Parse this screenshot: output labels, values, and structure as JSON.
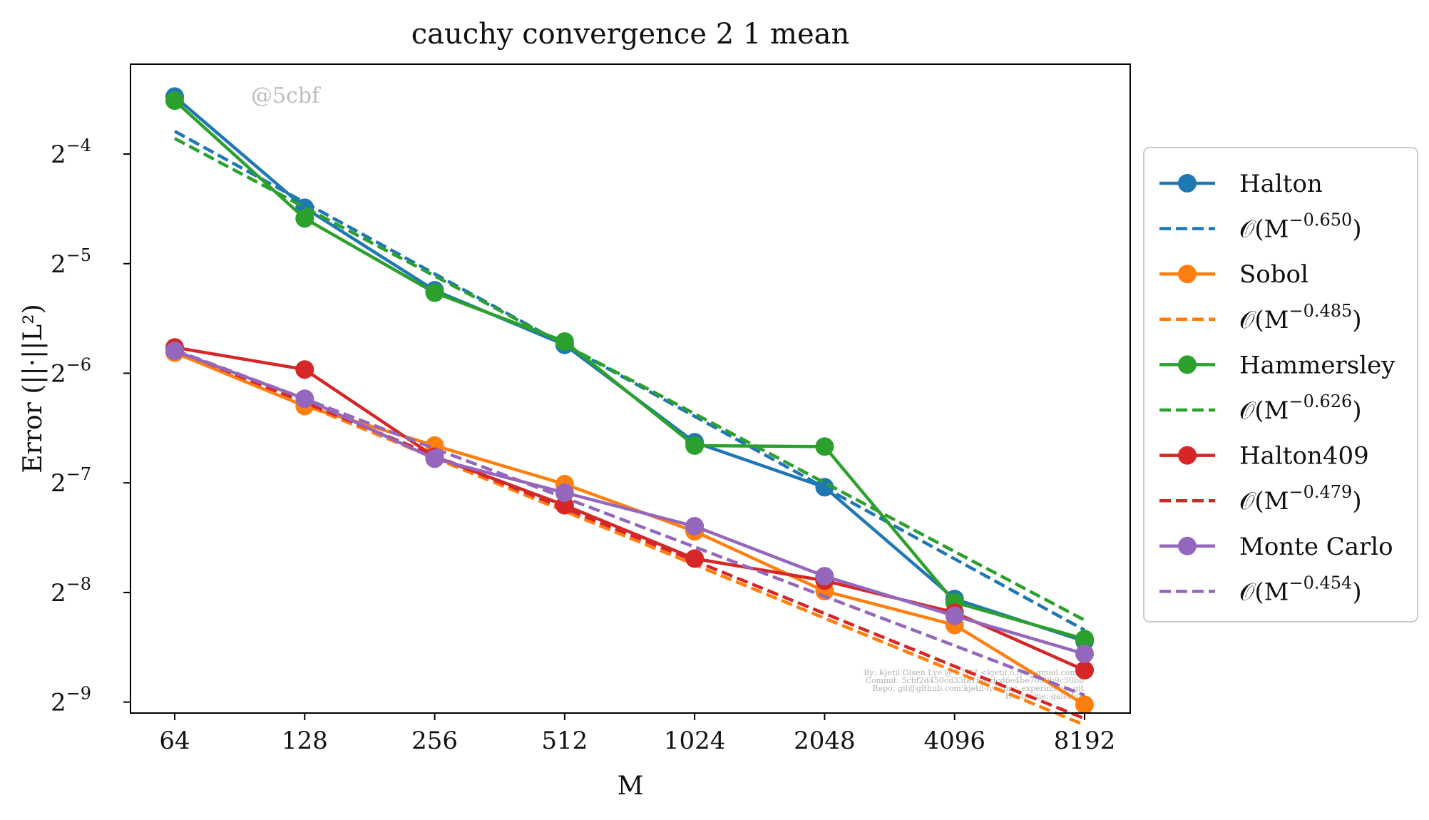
{
  "chart_data": {
    "type": "line",
    "title": "cauchy convergence 2 1 mean",
    "xlabel": "M",
    "ylabel": "Error (||·||L²)",
    "x_scale": "log2",
    "y_scale": "log2",
    "x": [
      64,
      128,
      256,
      512,
      1024,
      2048,
      4096,
      8192
    ],
    "x_tick_labels": [
      "64",
      "128",
      "256",
      "512",
      "1024",
      "2048",
      "4096",
      "8192"
    ],
    "y_ticks": [
      -9,
      -8,
      -7,
      -6,
      -5,
      -4
    ],
    "y_tick_base": "2",
    "ylim_exponent": [
      -9.1,
      -3.18
    ],
    "grid": false,
    "legend_position": "outside-right",
    "watermark": "@5cbf",
    "credits": [
      "By: Kjetil Olsen Lye @ ETHZ <kjetil.o.lye@gmail.com>",
      "Commit: 5cbf2d450cd33fa1f9ecfcd6e4be7030b9c50bb",
      "Repo: git@github.com:kjetil-lye/qmc_experiments.git",
      "Hostname: galerkin"
    ],
    "series": [
      {
        "name": "Halton",
        "kind": "measured",
        "color": "#1f77b4",
        "y": [
          0.0899,
          0.0445,
          0.0264,
          0.0187,
          0.0101,
          0.0076,
          0.00375,
          0.00287
        ]
      },
      {
        "name": "𝒪(M^−0.650)",
        "kind": "fit",
        "color": "#1f77b4",
        "y": [
          0.0722,
          0.046,
          0.0293,
          0.0187,
          0.0119,
          0.00758,
          0.00483,
          0.00308
        ]
      },
      {
        "name": "Sobol",
        "kind": "measured",
        "color": "#ff7f0e",
        "y": [
          0.0178,
          0.0127,
          0.00989,
          0.00775,
          0.00575,
          0.00394,
          0.00318,
          0.00192
        ]
      },
      {
        "name": "𝒪(M^−0.485)",
        "kind": "fit",
        "color": "#ff7f0e",
        "y": [
          0.018,
          0.0128,
          0.00914,
          0.00653,
          0.00466,
          0.00332,
          0.00237,
          0.00169
        ]
      },
      {
        "name": "Hammersley",
        "kind": "measured",
        "color": "#2ca02c",
        "y": [
          0.0876,
          0.0416,
          0.026,
          0.0191,
          0.00989,
          0.00983,
          0.00367,
          0.00291
        ]
      },
      {
        "name": "𝒪(M^−0.626)",
        "kind": "fit",
        "color": "#2ca02c",
        "y": [
          0.069,
          0.0446,
          0.0289,
          0.0187,
          0.0121,
          0.00782,
          0.00506,
          0.00328
        ]
      },
      {
        "name": "Halton409",
        "kind": "measured",
        "color": "#d62728",
        "y": [
          0.0184,
          0.016,
          0.00922,
          0.00678,
          0.00484,
          0.00421,
          0.00344,
          0.00239
        ]
      },
      {
        "name": "𝒪(M^−0.479)",
        "kind": "fit",
        "color": "#d62728",
        "y": [
          0.0181,
          0.013,
          0.00928,
          0.00665,
          0.00477,
          0.00342,
          0.00245,
          0.00176
        ]
      },
      {
        "name": "Monte Carlo",
        "kind": "measured",
        "color": "#9467bd",
        "y": [
          0.018,
          0.0133,
          0.0091,
          0.00734,
          0.00594,
          0.00433,
          0.00337,
          0.00265
        ]
      },
      {
        "name": "𝒪(M^−0.454)",
        "kind": "fit",
        "color": "#9467bd",
        "y": [
          0.0181,
          0.0133,
          0.0097,
          0.00711,
          0.00521,
          0.00381,
          0.00279,
          0.00204
        ]
      }
    ]
  }
}
